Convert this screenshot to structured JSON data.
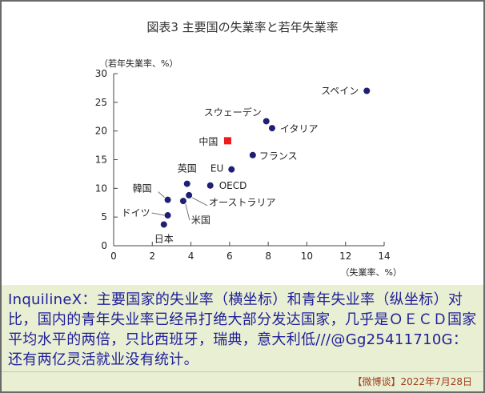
{
  "chart_data": {
    "type": "scatter",
    "title": "図表3 主要国の失業率と若年失業率",
    "xlabel": "（失業率、%）",
    "ylabel": "（若年失業率、%）",
    "xlim": [
      0,
      14
    ],
    "ylim": [
      0,
      30
    ],
    "xticks": [
      0,
      2,
      4,
      6,
      8,
      10,
      12,
      14
    ],
    "yticks": [
      0,
      5,
      10,
      15,
      20,
      25,
      30
    ],
    "grid": false,
    "points": [
      {
        "label": "スペイン",
        "x": 13.1,
        "y": 27.0
      },
      {
        "label": "スウェーデン",
        "x": 7.9,
        "y": 21.7
      },
      {
        "label": "イタリア",
        "x": 8.2,
        "y": 20.5
      },
      {
        "label": "中国",
        "x": 5.9,
        "y": 18.3
      },
      {
        "label": "フランス",
        "x": 7.2,
        "y": 15.8
      },
      {
        "label": "英国",
        "x": 3.8,
        "y": 10.8
      },
      {
        "label": "EU",
        "x": 6.1,
        "y": 13.3
      },
      {
        "label": "OECD",
        "x": 5.0,
        "y": 10.5
      },
      {
        "label": "韓国",
        "x": 2.8,
        "y": 8.0
      },
      {
        "label": "オーストラリア",
        "x": 3.9,
        "y": 8.8
      },
      {
        "label": "米国",
        "x": 3.6,
        "y": 7.8
      },
      {
        "label": "ドイツ",
        "x": 2.8,
        "y": 5.3
      },
      {
        "label": "日本",
        "x": 2.6,
        "y": 3.7
      }
    ],
    "colors": {
      "marker": "#1f1f73",
      "highlight": "#ee1c1c",
      "axis": "#444444",
      "text": "#222222"
    }
  },
  "caption": "InquilineX：主要国家的失业率（横坐标）和青年失业率（纵坐标）对比，国内的青年失业率已经吊打绝大部分发达国家，几乎是ＯＥＣＤ国家平均水平的两倍，只比西班牙，瑞典，意大利低///@Gg25411710G：还有两亿灵活就业没有统计。",
  "footer": "【微博谈】2022年7月28日"
}
